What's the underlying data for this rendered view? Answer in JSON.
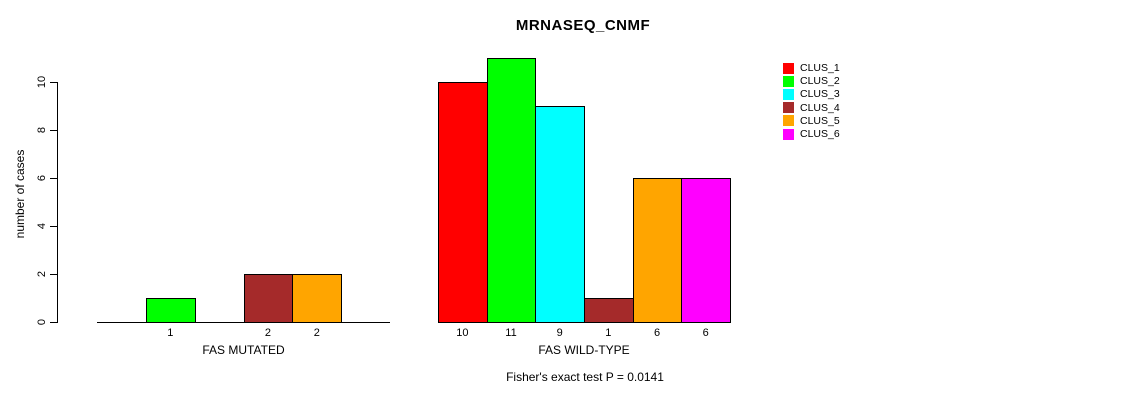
{
  "title": "MRNASEQ_CNMF",
  "y_axis": {
    "label": "number of cases",
    "ticks": [
      "0",
      "2",
      "4",
      "6",
      "8",
      "10"
    ]
  },
  "legend": {
    "items": [
      {
        "label": "CLUS_1",
        "color": "#FF0000"
      },
      {
        "label": "CLUS_2",
        "color": "#00FF00"
      },
      {
        "label": "CLUS_3",
        "color": "#00FFFF"
      },
      {
        "label": "CLUS_4",
        "color": "#A52A2A"
      },
      {
        "label": "CLUS_5",
        "color": "#FFA500"
      },
      {
        "label": "CLUS_6",
        "color": "#FF00FF"
      }
    ]
  },
  "footnote": "Fisher's exact test P = 0.0141",
  "chart_data": {
    "type": "bar",
    "title": "MRNASEQ_CNMF",
    "ylabel": "number of cases",
    "ylim": [
      0,
      11
    ],
    "yticks": [
      0,
      2,
      4,
      6,
      8,
      10
    ],
    "grid": false,
    "legend_position": "top-right",
    "clusters": [
      {
        "name": "CLUS_1",
        "color": "#FF0000"
      },
      {
        "name": "CLUS_2",
        "color": "#00FF00"
      },
      {
        "name": "CLUS_3",
        "color": "#00FFFF"
      },
      {
        "name": "CLUS_4",
        "color": "#A52A2A"
      },
      {
        "name": "CLUS_5",
        "color": "#FFA500"
      },
      {
        "name": "CLUS_6",
        "color": "#FF00FF"
      }
    ],
    "groups": [
      {
        "label": "FAS MUTATED",
        "values": [
          0,
          1,
          0,
          2,
          2,
          0
        ]
      },
      {
        "label": "FAS WILD-TYPE",
        "values": [
          10,
          11,
          9,
          1,
          6,
          6
        ]
      }
    ],
    "value_labels": "shown below each nonzero bar",
    "annotation": "Fisher's exact test P = 0.0141"
  }
}
